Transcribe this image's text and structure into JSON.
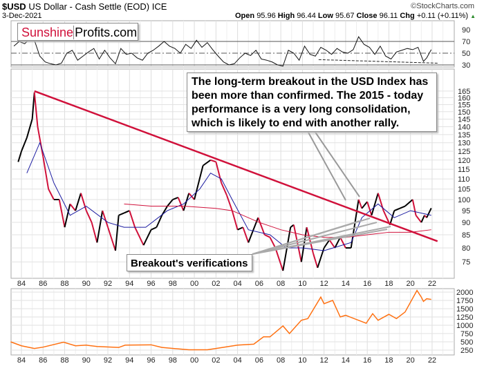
{
  "header": {
    "symbol": "$USD",
    "name": "US Dollar - Cash Settle (EOD)",
    "exchange": "ICE",
    "date": "3-Dec-2021",
    "watermark": "©StockCharts.com",
    "open_label": "Open",
    "open": "95.96",
    "high_label": "High",
    "high": "96.44",
    "low_label": "Low",
    "low": "95.67",
    "close_label": "Close",
    "close": "96.11",
    "chg_label": "Chg",
    "chg": "+0.11 (+0.11%)"
  },
  "logo": {
    "part1": "Sunshine",
    "part2": "Profits.com",
    "color1": "#d0103a"
  },
  "annotations": {
    "main": "The long-term breakout in the USD Index has been more than confirmed. The 2015 - today performance is a very long consolidation, which is likely to end with another rally.",
    "breakout": "Breakout's verifications"
  },
  "colors": {
    "up": "#000000",
    "down": "#d0103a",
    "ma_short": "#1a1aa0",
    "ma_long": "#d0103a",
    "trendline": "#d0103a",
    "gold": "#ff7010"
  },
  "chart_data": [
    {
      "type": "line",
      "panel": "rsi",
      "yticks": [
        30,
        50,
        70,
        90
      ],
      "ylim": [
        25,
        100
      ],
      "reference_lines": [
        30,
        50,
        70
      ],
      "x": [
        1983.3,
        1983.8,
        1984.3,
        1984.8,
        1985.2,
        1985.7,
        1986.2,
        1986.7,
        1987.2,
        1987.7,
        1988.2,
        1988.7,
        1989.2,
        1989.7,
        1990.2,
        1990.7,
        1991.2,
        1991.7,
        1992.2,
        1992.7,
        1993.2,
        1993.7,
        1994.2,
        1994.7,
        1995.2,
        1995.7,
        1996.2,
        1996.7,
        1997.2,
        1997.7,
        1998.2,
        1998.7,
        1999.2,
        1999.7,
        2000.2,
        2000.7,
        2001.2,
        2001.7,
        2002.2,
        2002.7,
        2003.2,
        2003.7,
        2004.2,
        2004.7,
        2005.2,
        2005.7,
        2006.2,
        2006.7,
        2007.2,
        2007.7,
        2008.2,
        2008.7,
        2009.2,
        2009.7,
        2010.2,
        2010.7,
        2011.2,
        2011.7,
        2012.2,
        2012.7,
        2013.2,
        2013.7,
        2014.2,
        2014.7,
        2015.2,
        2015.7,
        2016.2,
        2016.7,
        2017.2,
        2017.7,
        2018.2,
        2018.7,
        2019.2,
        2019.7,
        2020.2,
        2020.7,
        2021.2,
        2021.5,
        2021.92
      ],
      "values": [
        62,
        70,
        66,
        75,
        72,
        45,
        35,
        32,
        30,
        33,
        50,
        55,
        38,
        45,
        52,
        58,
        40,
        55,
        42,
        32,
        58,
        48,
        50,
        42,
        38,
        50,
        55,
        62,
        70,
        62,
        58,
        50,
        65,
        58,
        72,
        60,
        68,
        56,
        45,
        35,
        30,
        32,
        42,
        50,
        46,
        55,
        40,
        38,
        35,
        30,
        28,
        55,
        50,
        38,
        62,
        48,
        45,
        60,
        55,
        48,
        58,
        52,
        50,
        56,
        78,
        65,
        60,
        48,
        62,
        45,
        40,
        52,
        55,
        58,
        56,
        60,
        36,
        42,
        56
      ]
    },
    {
      "type": "ohlc",
      "panel": "price",
      "scale": "log",
      "yticks": [
        75,
        80,
        85,
        90,
        95,
        100,
        105,
        110,
        115,
        120,
        125,
        130,
        135,
        140,
        145,
        150,
        155,
        160,
        165
      ],
      "xticks": [
        "84",
        "86",
        "88",
        "90",
        "92",
        "94",
        "96",
        "98",
        "00",
        "02",
        "04",
        "06",
        "08",
        "10",
        "12",
        "14",
        "16",
        "18",
        "20",
        "22"
      ],
      "x": [
        1983.7,
        1984.0,
        1984.5,
        1985.0,
        1985.2,
        1985.5,
        1986.0,
        1986.5,
        1987.0,
        1987.5,
        1988.0,
        1988.5,
        1989.0,
        1989.5,
        1990.0,
        1990.5,
        1991.0,
        1991.5,
        1992.0,
        1992.7,
        1993.0,
        1993.5,
        1994.0,
        1994.5,
        1995.3,
        1996.0,
        1996.5,
        1997.0,
        1997.5,
        1998.0,
        1998.5,
        1999.0,
        1999.5,
        2000.0,
        2000.8,
        2001.5,
        2002.0,
        2002.5,
        2003.0,
        2003.5,
        2004.0,
        2004.5,
        2005.0,
        2005.9,
        2006.5,
        2007.0,
        2007.5,
        2008.2,
        2008.9,
        2009.2,
        2009.9,
        2010.4,
        2011.0,
        2011.4,
        2012.0,
        2012.5,
        2013.0,
        2013.5,
        2014.0,
        2014.5,
        2015.2,
        2015.5,
        2016.0,
        2016.4,
        2017.0,
        2017.5,
        2018.1,
        2018.5,
        2019.0,
        2019.5,
        2020.2,
        2020.5,
        2021.0,
        2021.3,
        2021.5,
        2021.92
      ],
      "close": [
        119,
        125,
        133,
        145,
        164,
        140,
        122,
        105,
        100,
        100,
        88,
        98,
        95,
        103,
        95,
        90,
        82,
        95,
        88,
        79,
        93,
        94,
        95,
        88,
        81,
        87,
        88,
        93,
        97,
        100,
        101,
        95,
        103,
        100,
        117,
        120,
        119,
        108,
        102,
        95,
        87,
        88,
        82,
        92,
        85,
        84,
        80,
        72,
        88,
        89,
        75,
        88,
        78,
        73,
        80,
        83,
        80,
        84,
        80,
        80,
        100,
        96,
        99,
        93,
        103,
        95,
        89,
        95,
        96,
        97,
        100,
        93,
        90,
        93,
        92,
        96.11
      ],
      "ma_short": {
        "x": [
          1984.5,
          1985.7,
          1987.0,
          1988.5,
          1990.0,
          1992.0,
          1993.5,
          1995.5,
          1997.5,
          1999.0,
          2000.5,
          2001.5,
          2002.5,
          2003.5,
          2005.0,
          2007.0,
          2008.5,
          2010.0,
          2012.0,
          2014.5,
          2015.5,
          2017.0,
          2018.5,
          2020.0,
          2021.92
        ],
        "values": [
          113,
          130,
          108,
          93,
          97,
          90,
          88,
          88,
          95,
          98,
          105,
          113,
          110,
          100,
          87,
          85,
          80,
          80,
          79,
          82,
          92,
          98,
          92,
          95,
          93
        ]
      },
      "ma_long": {
        "x": [
          1993.5,
          1996.0,
          1999.0,
          2002.0,
          2003.5,
          2006.0,
          2008.0,
          2010.0,
          2012.0,
          2014.0,
          2016.0,
          2018.0,
          2020.0,
          2021.92
        ],
        "values": [
          98,
          97,
          97,
          96,
          95,
          90,
          87,
          85,
          84,
          84,
          85,
          86,
          86,
          87
        ]
      },
      "trendline": {
        "x": [
          1985.2,
          2022.5
        ],
        "values": [
          165,
          82.5
        ]
      }
    },
    {
      "type": "line",
      "panel": "gold",
      "yticks": [
        250,
        500,
        750,
        1000,
        1250,
        1500,
        1750,
        2000
      ],
      "x": [
        1983.0,
        1984.0,
        1985.2,
        1986.0,
        1987.9,
        1989.0,
        1990.0,
        1991.0,
        1993.0,
        1993.6,
        1996.0,
        1997.0,
        1999.5,
        2001.2,
        2002.0,
        2004.0,
        2005.5,
        2006.4,
        2007.0,
        2008.2,
        2008.8,
        2009.9,
        2010.5,
        2011.7,
        2012.0,
        2012.8,
        2013.5,
        2014.0,
        2015.9,
        2016.5,
        2017.0,
        2018.0,
        2018.7,
        2019.5,
        2020.6,
        2021.0,
        2021.2,
        2021.5,
        2021.92
      ],
      "values": [
        500,
        380,
        300,
        340,
        490,
        380,
        400,
        360,
        330,
        400,
        410,
        330,
        260,
        260,
        300,
        400,
        430,
        650,
        650,
        980,
        750,
        1150,
        1200,
        1850,
        1650,
        1750,
        1250,
        1300,
        1060,
        1350,
        1150,
        1330,
        1200,
        1400,
        2050,
        1850,
        1720,
        1800,
        1780
      ]
    }
  ]
}
